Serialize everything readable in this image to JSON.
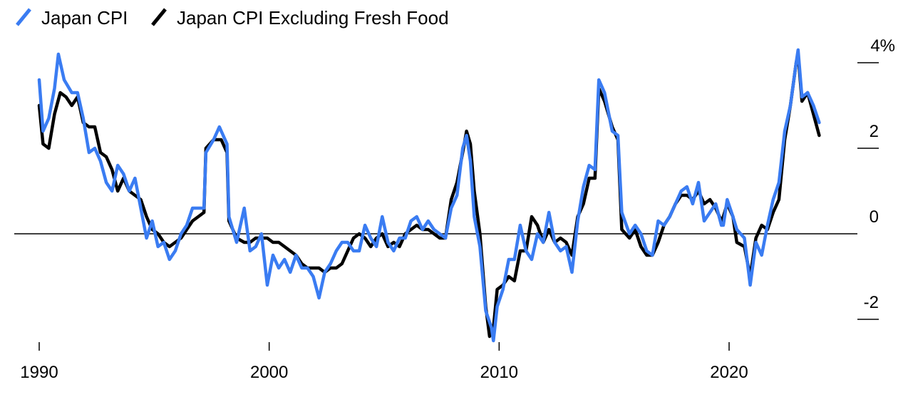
{
  "chart_data": {
    "type": "line",
    "title": "",
    "xlabel": "",
    "ylabel": "",
    "ylim": [
      -2.6,
      4.4
    ],
    "xlim": [
      "1989-07",
      "2025-12"
    ],
    "x_ticks": [
      {
        "value": 1990,
        "label": "1990"
      },
      {
        "value": 2000,
        "label": "2000"
      },
      {
        "value": 2010,
        "label": "2010"
      },
      {
        "value": 2020,
        "label": "2020"
      }
    ],
    "y_ticks": [
      {
        "value": 4,
        "label": "4%"
      },
      {
        "value": 2,
        "label": "2"
      },
      {
        "value": 0,
        "label": "0"
      },
      {
        "value": -2,
        "label": "-2"
      }
    ],
    "zero_line": true,
    "grid": false,
    "legend": {
      "position": "top-left"
    },
    "series": [
      {
        "name": "Japan CPI Excluding Fresh Food",
        "color": "#000000",
        "points": [
          [
            "1990-01",
            3.0
          ],
          [
            "1990-03",
            2.1
          ],
          [
            "1990-06",
            2.0
          ],
          [
            "1990-09",
            2.8
          ],
          [
            "1990-12",
            3.3
          ],
          [
            "1991-03",
            3.2
          ],
          [
            "1991-06",
            3.0
          ],
          [
            "1991-09",
            3.2
          ],
          [
            "1991-12",
            2.6
          ],
          [
            "1992-03",
            2.5
          ],
          [
            "1992-06",
            2.5
          ],
          [
            "1992-09",
            1.9
          ],
          [
            "1992-12",
            1.8
          ],
          [
            "1993-03",
            1.5
          ],
          [
            "1993-06",
            1.0
          ],
          [
            "1993-09",
            1.3
          ],
          [
            "1993-12",
            1.0
          ],
          [
            "1994-03",
            0.9
          ],
          [
            "1994-06",
            0.8
          ],
          [
            "1994-09",
            0.4
          ],
          [
            "1994-12",
            0.1
          ],
          [
            "1995-03",
            0.0
          ],
          [
            "1995-06",
            -0.2
          ],
          [
            "1995-09",
            -0.3
          ],
          [
            "1995-12",
            -0.2
          ],
          [
            "1996-03",
            -0.1
          ],
          [
            "1996-06",
            0.1
          ],
          [
            "1996-09",
            0.3
          ],
          [
            "1996-12",
            0.4
          ],
          [
            "1997-03",
            0.5
          ],
          [
            "1997-04",
            2.0
          ],
          [
            "1997-08",
            2.2
          ],
          [
            "1997-12",
            2.2
          ],
          [
            "1998-03",
            1.9
          ],
          [
            "1998-04",
            0.3
          ],
          [
            "1998-08",
            -0.1
          ],
          [
            "1998-12",
            -0.2
          ],
          [
            "1999-03",
            -0.2
          ],
          [
            "1999-06",
            -0.1
          ],
          [
            "1999-09",
            -0.1
          ],
          [
            "1999-12",
            -0.1
          ],
          [
            "2000-03",
            -0.2
          ],
          [
            "2000-06",
            -0.2
          ],
          [
            "2000-09",
            -0.3
          ],
          [
            "2000-12",
            -0.4
          ],
          [
            "2001-03",
            -0.5
          ],
          [
            "2001-06",
            -0.7
          ],
          [
            "2001-09",
            -0.8
          ],
          [
            "2001-12",
            -0.8
          ],
          [
            "2002-03",
            -0.8
          ],
          [
            "2002-06",
            -0.9
          ],
          [
            "2002-09",
            -0.8
          ],
          [
            "2002-12",
            -0.8
          ],
          [
            "2003-03",
            -0.7
          ],
          [
            "2003-06",
            -0.4
          ],
          [
            "2003-09",
            -0.1
          ],
          [
            "2003-12",
            0.0
          ],
          [
            "2004-03",
            -0.1
          ],
          [
            "2004-06",
            -0.3
          ],
          [
            "2004-09",
            -0.1
          ],
          [
            "2004-12",
            0.0
          ],
          [
            "2005-03",
            -0.3
          ],
          [
            "2005-06",
            -0.2
          ],
          [
            "2005-09",
            -0.3
          ],
          [
            "2005-12",
            0.0
          ],
          [
            "2006-03",
            0.1
          ],
          [
            "2006-06",
            0.2
          ],
          [
            "2006-09",
            0.1
          ],
          [
            "2006-12",
            0.1
          ],
          [
            "2007-03",
            0.0
          ],
          [
            "2007-06",
            -0.1
          ],
          [
            "2007-09",
            -0.1
          ],
          [
            "2007-12",
            0.8
          ],
          [
            "2008-03",
            1.2
          ],
          [
            "2008-06",
            1.9
          ],
          [
            "2008-08",
            2.4
          ],
          [
            "2008-10",
            2.1
          ],
          [
            "2008-12",
            1.0
          ],
          [
            "2009-03",
            0.0
          ],
          [
            "2009-06",
            -1.7
          ],
          [
            "2009-08",
            -2.4
          ],
          [
            "2009-10",
            -2.2
          ],
          [
            "2009-12",
            -1.3
          ],
          [
            "2010-03",
            -1.2
          ],
          [
            "2010-06",
            -1.0
          ],
          [
            "2010-09",
            -1.1
          ],
          [
            "2010-12",
            -0.4
          ],
          [
            "2011-03",
            -0.4
          ],
          [
            "2011-06",
            0.4
          ],
          [
            "2011-09",
            0.2
          ],
          [
            "2011-12",
            -0.2
          ],
          [
            "2012-03",
            0.1
          ],
          [
            "2012-06",
            -0.2
          ],
          [
            "2012-09",
            -0.1
          ],
          [
            "2012-12",
            -0.2
          ],
          [
            "2013-03",
            -0.5
          ],
          [
            "2013-06",
            0.4
          ],
          [
            "2013-09",
            0.7
          ],
          [
            "2013-12",
            1.3
          ],
          [
            "2014-03",
            1.3
          ],
          [
            "2014-05",
            3.4
          ],
          [
            "2014-08",
            3.1
          ],
          [
            "2014-12",
            2.5
          ],
          [
            "2015-03",
            2.2
          ],
          [
            "2015-05",
            0.1
          ],
          [
            "2015-09",
            -0.1
          ],
          [
            "2015-12",
            0.1
          ],
          [
            "2016-03",
            -0.3
          ],
          [
            "2016-06",
            -0.5
          ],
          [
            "2016-09",
            -0.5
          ],
          [
            "2016-12",
            -0.2
          ],
          [
            "2017-03",
            0.2
          ],
          [
            "2017-06",
            0.4
          ],
          [
            "2017-09",
            0.7
          ],
          [
            "2017-12",
            0.9
          ],
          [
            "2018-03",
            0.9
          ],
          [
            "2018-06",
            0.8
          ],
          [
            "2018-09",
            1.0
          ],
          [
            "2018-12",
            0.7
          ],
          [
            "2019-03",
            0.8
          ],
          [
            "2019-06",
            0.6
          ],
          [
            "2019-09",
            0.3
          ],
          [
            "2019-10",
            0.4
          ],
          [
            "2019-12",
            0.7
          ],
          [
            "2020-03",
            0.4
          ],
          [
            "2020-05",
            -0.2
          ],
          [
            "2020-09",
            -0.3
          ],
          [
            "2020-12",
            -1.0
          ],
          [
            "2021-03",
            -0.1
          ],
          [
            "2021-06",
            0.2
          ],
          [
            "2021-09",
            0.1
          ],
          [
            "2021-12",
            0.5
          ],
          [
            "2022-03",
            0.8
          ],
          [
            "2022-06",
            2.2
          ],
          [
            "2022-09",
            3.0
          ],
          [
            "2022-12",
            4.0
          ],
          [
            "2023-01",
            4.2
          ],
          [
            "2023-03",
            3.1
          ],
          [
            "2023-06",
            3.3
          ],
          [
            "2023-09",
            2.8
          ],
          [
            "2023-12",
            2.3
          ]
        ]
      },
      {
        "name": "Japan CPI",
        "color": "#3a7cf2",
        "points": [
          [
            "1990-01",
            3.6
          ],
          [
            "1990-03",
            2.4
          ],
          [
            "1990-06",
            2.7
          ],
          [
            "1990-09",
            3.4
          ],
          [
            "1990-11",
            4.2
          ],
          [
            "1991-02",
            3.6
          ],
          [
            "1991-06",
            3.3
          ],
          [
            "1991-09",
            3.3
          ],
          [
            "1991-12",
            2.7
          ],
          [
            "1992-03",
            1.9
          ],
          [
            "1992-06",
            2.0
          ],
          [
            "1992-09",
            1.7
          ],
          [
            "1992-12",
            1.2
          ],
          [
            "1993-03",
            1.0
          ],
          [
            "1993-06",
            1.6
          ],
          [
            "1993-09",
            1.4
          ],
          [
            "1993-12",
            1.0
          ],
          [
            "1994-03",
            1.3
          ],
          [
            "1994-06",
            0.6
          ],
          [
            "1994-09",
            -0.1
          ],
          [
            "1994-12",
            0.3
          ],
          [
            "1995-03",
            -0.3
          ],
          [
            "1995-06",
            -0.2
          ],
          [
            "1995-09",
            -0.6
          ],
          [
            "1995-12",
            -0.4
          ],
          [
            "1996-03",
            0.0
          ],
          [
            "1996-06",
            0.2
          ],
          [
            "1996-09",
            0.6
          ],
          [
            "1996-12",
            0.6
          ],
          [
            "1997-03",
            0.6
          ],
          [
            "1997-04",
            1.9
          ],
          [
            "1997-08",
            2.2
          ],
          [
            "1997-11",
            2.5
          ],
          [
            "1998-03",
            2.1
          ],
          [
            "1998-04",
            0.4
          ],
          [
            "1998-08",
            -0.2
          ],
          [
            "1998-12",
            0.6
          ],
          [
            "1999-03",
            -0.4
          ],
          [
            "1999-06",
            -0.3
          ],
          [
            "1999-09",
            0.0
          ],
          [
            "1999-12",
            -1.2
          ],
          [
            "2000-03",
            -0.5
          ],
          [
            "2000-06",
            -0.8
          ],
          [
            "2000-09",
            -0.6
          ],
          [
            "2000-12",
            -0.9
          ],
          [
            "2001-03",
            -0.5
          ],
          [
            "2001-06",
            -0.8
          ],
          [
            "2001-09",
            -0.8
          ],
          [
            "2001-12",
            -1.0
          ],
          [
            "2002-03",
            -1.5
          ],
          [
            "2002-06",
            -0.9
          ],
          [
            "2002-09",
            -0.7
          ],
          [
            "2002-12",
            -0.4
          ],
          [
            "2003-03",
            -0.2
          ],
          [
            "2003-06",
            -0.2
          ],
          [
            "2003-09",
            -0.4
          ],
          [
            "2003-12",
            -0.4
          ],
          [
            "2004-03",
            0.2
          ],
          [
            "2004-06",
            -0.1
          ],
          [
            "2004-09",
            -0.3
          ],
          [
            "2004-12",
            0.4
          ],
          [
            "2005-03",
            -0.2
          ],
          [
            "2005-06",
            -0.4
          ],
          [
            "2005-09",
            -0.1
          ],
          [
            "2005-12",
            -0.1
          ],
          [
            "2006-03",
            0.3
          ],
          [
            "2006-06",
            0.4
          ],
          [
            "2006-09",
            0.1
          ],
          [
            "2006-12",
            0.3
          ],
          [
            "2007-03",
            0.1
          ],
          [
            "2007-06",
            0.0
          ],
          [
            "2007-09",
            -0.1
          ],
          [
            "2007-12",
            0.6
          ],
          [
            "2008-03",
            0.9
          ],
          [
            "2008-06",
            2.0
          ],
          [
            "2008-08",
            2.3
          ],
          [
            "2008-10",
            1.7
          ],
          [
            "2008-12",
            0.4
          ],
          [
            "2009-03",
            -0.3
          ],
          [
            "2009-06",
            -1.8
          ],
          [
            "2009-09",
            -2.2
          ],
          [
            "2009-10",
            -2.5
          ],
          [
            "2009-12",
            -1.7
          ],
          [
            "2010-03",
            -1.3
          ],
          [
            "2010-06",
            -0.6
          ],
          [
            "2010-09",
            -0.6
          ],
          [
            "2010-12",
            0.2
          ],
          [
            "2011-03",
            -0.4
          ],
          [
            "2011-06",
            -0.6
          ],
          [
            "2011-09",
            0.0
          ],
          [
            "2011-12",
            -0.2
          ],
          [
            "2012-03",
            0.5
          ],
          [
            "2012-06",
            -0.2
          ],
          [
            "2012-09",
            -0.4
          ],
          [
            "2012-12",
            -0.3
          ],
          [
            "2013-03",
            -0.9
          ],
          [
            "2013-06",
            0.3
          ],
          [
            "2013-09",
            1.1
          ],
          [
            "2013-12",
            1.6
          ],
          [
            "2014-03",
            1.5
          ],
          [
            "2014-05",
            3.6
          ],
          [
            "2014-08",
            3.3
          ],
          [
            "2014-12",
            2.4
          ],
          [
            "2015-03",
            2.3
          ],
          [
            "2015-05",
            0.5
          ],
          [
            "2015-09",
            0.0
          ],
          [
            "2015-12",
            0.2
          ],
          [
            "2016-03",
            0.0
          ],
          [
            "2016-06",
            -0.4
          ],
          [
            "2016-09",
            -0.5
          ],
          [
            "2016-12",
            0.3
          ],
          [
            "2017-03",
            0.2
          ],
          [
            "2017-06",
            0.4
          ],
          [
            "2017-09",
            0.7
          ],
          [
            "2017-12",
            1.0
          ],
          [
            "2018-03",
            1.1
          ],
          [
            "2018-06",
            0.7
          ],
          [
            "2018-09",
            1.2
          ],
          [
            "2018-12",
            0.3
          ],
          [
            "2019-03",
            0.5
          ],
          [
            "2019-06",
            0.7
          ],
          [
            "2019-09",
            0.2
          ],
          [
            "2019-10",
            0.2
          ],
          [
            "2019-12",
            0.8
          ],
          [
            "2020-03",
            0.4
          ],
          [
            "2020-05",
            0.1
          ],
          [
            "2020-09",
            -0.1
          ],
          [
            "2020-12",
            -1.2
          ],
          [
            "2021-03",
            -0.2
          ],
          [
            "2021-06",
            -0.5
          ],
          [
            "2021-09",
            0.2
          ],
          [
            "2021-12",
            0.8
          ],
          [
            "2022-03",
            1.2
          ],
          [
            "2022-06",
            2.4
          ],
          [
            "2022-09",
            3.0
          ],
          [
            "2022-12",
            4.0
          ],
          [
            "2023-01",
            4.3
          ],
          [
            "2023-03",
            3.2
          ],
          [
            "2023-06",
            3.3
          ],
          [
            "2023-09",
            3.0
          ],
          [
            "2023-12",
            2.6
          ]
        ]
      }
    ]
  }
}
